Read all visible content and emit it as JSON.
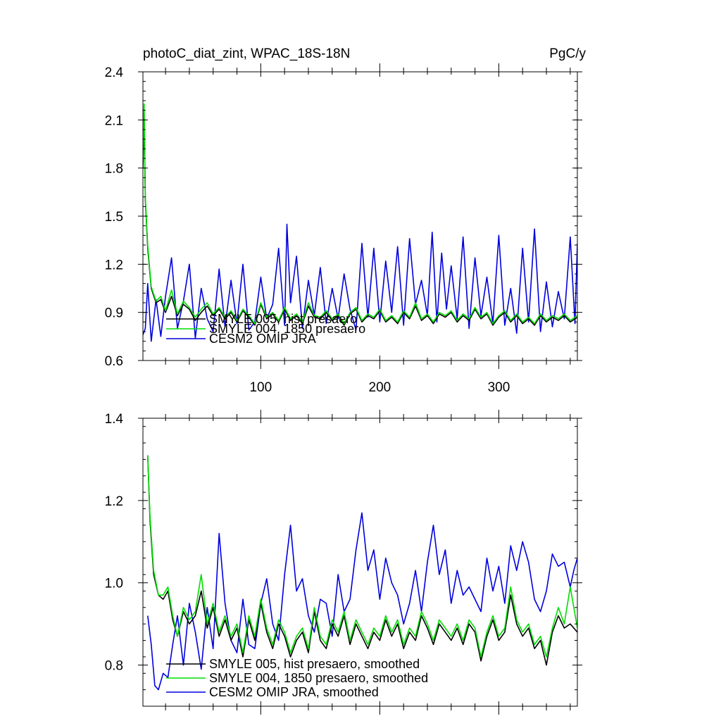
{
  "chart_data": [
    {
      "type": "line",
      "title": "photoC_diat_zint, WPAC_18S-18N",
      "units": "PgC/y",
      "xlabel": "",
      "ylabel": "",
      "xlim": [
        1,
        366
      ],
      "ylim": [
        0.6,
        2.4
      ],
      "xticks": [
        100,
        200,
        300
      ],
      "xtick_labels": [
        "100",
        "200",
        "300"
      ],
      "yticks": [
        0.6,
        0.9,
        1.2,
        1.5,
        1.8,
        2.1,
        2.4
      ],
      "ytick_labels": [
        "0.6",
        "0.9",
        "1.2",
        "1.5",
        "1.8",
        "2.1",
        "2.4"
      ],
      "grid": false,
      "legend_position": "bottom-left",
      "series": [
        {
          "name": "SMYLE 005, hist presaero",
          "color": "#000000",
          "x": [
            1,
            2,
            3,
            5,
            8,
            12,
            16,
            20,
            25,
            30,
            35,
            40,
            45,
            50,
            55,
            60,
            65,
            70,
            75,
            80,
            85,
            90,
            95,
            100,
            105,
            110,
            115,
            120,
            125,
            130,
            135,
            140,
            145,
            150,
            155,
            160,
            165,
            170,
            175,
            180,
            185,
            190,
            195,
            200,
            205,
            210,
            215,
            220,
            225,
            230,
            235,
            240,
            245,
            250,
            255,
            260,
            265,
            270,
            275,
            280,
            285,
            290,
            295,
            300,
            305,
            310,
            315,
            320,
            325,
            330,
            335,
            340,
            345,
            350,
            355,
            360,
            366
          ],
          "values": [
            1.8,
            2.15,
            1.6,
            1.3,
            1.05,
            0.96,
            0.98,
            0.9,
            1.0,
            0.88,
            0.95,
            0.92,
            0.85,
            0.9,
            0.94,
            0.88,
            0.92,
            0.86,
            0.9,
            0.84,
            0.91,
            0.87,
            0.82,
            0.95,
            0.86,
            0.89,
            0.84,
            0.92,
            0.85,
            0.88,
            0.83,
            0.94,
            0.87,
            0.86,
            0.9,
            0.85,
            0.88,
            0.82,
            0.89,
            0.92,
            0.84,
            0.88,
            0.86,
            0.91,
            0.84,
            0.87,
            0.83,
            0.9,
            0.86,
            0.94,
            0.85,
            0.88,
            0.83,
            0.89,
            0.87,
            0.9,
            0.84,
            0.88,
            0.85,
            0.92,
            0.86,
            0.89,
            0.82,
            0.87,
            0.9,
            0.84,
            0.88,
            0.83,
            0.86,
            0.82,
            0.88,
            0.84,
            0.87,
            0.85,
            0.88,
            0.84,
            0.87
          ]
        },
        {
          "name": "SMYLE 004, 1850 presaero",
          "color": "#00dd00",
          "x": [
            1,
            2,
            3,
            5,
            8,
            12,
            16,
            20,
            25,
            30,
            35,
            40,
            45,
            50,
            55,
            60,
            65,
            70,
            75,
            80,
            85,
            90,
            95,
            100,
            105,
            110,
            115,
            120,
            125,
            130,
            135,
            140,
            145,
            150,
            155,
            160,
            165,
            170,
            175,
            180,
            185,
            190,
            195,
            200,
            205,
            210,
            215,
            220,
            225,
            230,
            235,
            240,
            245,
            250,
            255,
            260,
            265,
            270,
            275,
            280,
            285,
            290,
            295,
            300,
            305,
            310,
            315,
            320,
            325,
            330,
            335,
            340,
            345,
            350,
            355,
            360,
            366
          ],
          "values": [
            1.85,
            2.2,
            1.62,
            1.32,
            1.06,
            0.97,
            1.0,
            0.91,
            1.04,
            0.89,
            0.97,
            0.93,
            0.87,
            0.92,
            0.96,
            0.89,
            0.93,
            0.87,
            0.91,
            0.85,
            0.92,
            0.88,
            0.83,
            0.96,
            0.87,
            0.9,
            0.85,
            0.93,
            0.86,
            0.89,
            0.84,
            0.96,
            0.88,
            0.87,
            0.91,
            0.86,
            0.89,
            0.83,
            0.9,
            0.93,
            0.85,
            0.89,
            0.87,
            0.92,
            0.85,
            0.88,
            0.84,
            0.91,
            0.87,
            0.96,
            0.86,
            0.89,
            0.84,
            0.9,
            0.88,
            0.91,
            0.85,
            0.89,
            0.86,
            0.93,
            0.87,
            0.9,
            0.83,
            0.88,
            0.91,
            0.85,
            0.89,
            0.84,
            0.87,
            0.83,
            0.89,
            0.85,
            0.88,
            0.86,
            0.89,
            0.85,
            0.88
          ]
        },
        {
          "name": "CESM2 OMIP JRA",
          "color": "#0000dd",
          "x": [
            1,
            3,
            5,
            8,
            12,
            16,
            20,
            25,
            30,
            35,
            40,
            45,
            50,
            55,
            60,
            65,
            70,
            75,
            80,
            85,
            90,
            95,
            100,
            105,
            110,
            115,
            120,
            122,
            125,
            130,
            135,
            140,
            145,
            150,
            155,
            160,
            165,
            170,
            175,
            180,
            185,
            190,
            195,
            200,
            205,
            210,
            215,
            220,
            225,
            230,
            235,
            240,
            244,
            248,
            252,
            256,
            260,
            265,
            270,
            275,
            280,
            285,
            290,
            295,
            300,
            305,
            310,
            315,
            320,
            325,
            330,
            335,
            340,
            345,
            350,
            355,
            360,
            364,
            366
          ],
          "values": [
            0.76,
            0.8,
            1.08,
            0.72,
            0.98,
            0.75,
            1.0,
            1.24,
            0.8,
            0.97,
            1.2,
            0.74,
            1.05,
            0.86,
            0.78,
            1.17,
            0.81,
            1.1,
            0.83,
            1.2,
            0.79,
            0.84,
            1.12,
            0.86,
            0.95,
            1.3,
            0.82,
            1.45,
            0.96,
            1.25,
            0.8,
            1.1,
            0.88,
            1.18,
            0.83,
            1.05,
            0.86,
            1.14,
            0.92,
            0.79,
            1.33,
            0.87,
            1.3,
            0.84,
            1.22,
            0.9,
            1.31,
            0.82,
            1.36,
            0.95,
            1.1,
            0.88,
            1.4,
            0.84,
            1.27,
            0.92,
            1.19,
            0.86,
            1.37,
            0.8,
            1.24,
            0.88,
            1.12,
            0.83,
            1.38,
            0.82,
            1.05,
            0.77,
            1.3,
            0.84,
            1.42,
            0.78,
            1.09,
            0.81,
            1.03,
            0.86,
            1.37,
            0.83,
            1.33
          ]
        }
      ]
    },
    {
      "type": "line",
      "title": "",
      "xlabel": "",
      "ylabel": "",
      "xlim": [
        1,
        366
      ],
      "ylim": [
        0.7,
        1.4
      ],
      "xticks": [
        100,
        200,
        300
      ],
      "xtick_labels": [],
      "yticks": [
        0.8,
        1.0,
        1.2,
        1.4
      ],
      "ytick_labels": [
        "0.8",
        "1.0",
        "1.2",
        "1.4"
      ],
      "grid": false,
      "legend_position": "bottom-left",
      "series": [
        {
          "name": "SMYLE 005, hist presaero, smoothed",
          "color": "#000000",
          "x": [
            5,
            7,
            10,
            14,
            18,
            22,
            26,
            30,
            35,
            40,
            45,
            50,
            55,
            60,
            65,
            70,
            75,
            80,
            85,
            90,
            95,
            100,
            105,
            110,
            115,
            120,
            125,
            130,
            135,
            140,
            145,
            150,
            155,
            160,
            165,
            170,
            175,
            180,
            185,
            190,
            195,
            200,
            205,
            210,
            215,
            220,
            225,
            230,
            235,
            240,
            245,
            250,
            255,
            260,
            265,
            270,
            275,
            280,
            285,
            290,
            295,
            300,
            305,
            310,
            315,
            320,
            325,
            330,
            335,
            340,
            345,
            350,
            355,
            360,
            366
          ],
          "values": [
            1.31,
            1.15,
            1.02,
            0.97,
            0.96,
            0.98,
            0.91,
            0.87,
            0.93,
            0.9,
            0.92,
            0.98,
            0.89,
            0.94,
            0.87,
            0.91,
            0.86,
            0.89,
            0.82,
            0.91,
            0.86,
            0.95,
            0.88,
            0.84,
            0.9,
            0.87,
            0.82,
            0.86,
            0.88,
            0.83,
            0.93,
            0.86,
            0.84,
            0.9,
            0.87,
            0.92,
            0.85,
            0.9,
            0.87,
            0.84,
            0.88,
            0.86,
            0.91,
            0.87,
            0.9,
            0.84,
            0.88,
            0.86,
            0.92,
            0.89,
            0.85,
            0.9,
            0.88,
            0.86,
            0.89,
            0.85,
            0.9,
            0.88,
            0.81,
            0.87,
            0.91,
            0.86,
            0.88,
            0.97,
            0.9,
            0.87,
            0.89,
            0.84,
            0.86,
            0.8,
            0.88,
            0.92,
            0.89,
            0.9,
            0.88
          ]
        },
        {
          "name": "SMYLE 004, 1850 presaero, smoothed",
          "color": "#00dd00",
          "x": [
            5,
            7,
            10,
            14,
            18,
            22,
            26,
            30,
            35,
            40,
            45,
            50,
            55,
            60,
            65,
            70,
            75,
            80,
            85,
            90,
            95,
            100,
            105,
            110,
            115,
            120,
            125,
            130,
            135,
            140,
            145,
            150,
            155,
            160,
            165,
            170,
            175,
            180,
            185,
            190,
            195,
            200,
            205,
            210,
            215,
            220,
            225,
            230,
            235,
            240,
            245,
            250,
            255,
            260,
            265,
            270,
            275,
            280,
            285,
            290,
            295,
            300,
            305,
            310,
            315,
            320,
            325,
            330,
            335,
            340,
            345,
            350,
            355,
            360,
            366
          ],
          "values": [
            1.31,
            1.16,
            1.03,
            0.97,
            0.97,
            0.99,
            0.92,
            0.87,
            0.94,
            0.91,
            0.93,
            1.02,
            0.9,
            0.95,
            0.88,
            0.92,
            0.87,
            0.9,
            0.83,
            0.92,
            0.87,
            0.96,
            0.89,
            0.85,
            0.91,
            0.88,
            0.83,
            0.87,
            0.89,
            0.84,
            0.94,
            0.87,
            0.85,
            0.91,
            0.88,
            0.93,
            0.86,
            0.91,
            0.88,
            0.85,
            0.89,
            0.87,
            0.92,
            0.88,
            0.91,
            0.85,
            0.89,
            0.87,
            0.93,
            0.9,
            0.86,
            0.91,
            0.89,
            0.87,
            0.9,
            0.86,
            0.91,
            0.89,
            0.82,
            0.88,
            0.92,
            0.87,
            0.89,
            0.99,
            0.91,
            0.88,
            0.9,
            0.85,
            0.87,
            0.82,
            0.89,
            0.94,
            0.9,
            0.99,
            0.89
          ]
        },
        {
          "name": "CESM2 OMIP JRA, smoothed",
          "color": "#0000dd",
          "x": [
            5,
            8,
            11,
            14,
            18,
            22,
            26,
            30,
            35,
            40,
            45,
            50,
            55,
            60,
            65,
            70,
            75,
            80,
            85,
            90,
            95,
            100,
            105,
            110,
            115,
            120,
            125,
            130,
            135,
            140,
            145,
            150,
            155,
            160,
            165,
            170,
            175,
            180,
            185,
            190,
            195,
            200,
            205,
            210,
            215,
            220,
            225,
            230,
            235,
            240,
            245,
            250,
            255,
            260,
            265,
            270,
            275,
            280,
            285,
            290,
            295,
            300,
            305,
            310,
            315,
            320,
            325,
            330,
            335,
            340,
            345,
            350,
            355,
            360,
            363,
            366
          ],
          "values": [
            0.92,
            0.85,
            0.75,
            0.74,
            0.78,
            0.77,
            0.85,
            0.92,
            0.8,
            0.95,
            0.88,
            0.79,
            0.94,
            0.84,
            1.12,
            0.95,
            0.86,
            0.83,
            0.96,
            0.85,
            0.84,
            0.95,
            1.01,
            0.9,
            0.86,
            1.02,
            1.14,
            0.98,
            1.01,
            0.92,
            0.88,
            0.96,
            0.95,
            0.87,
            1.02,
            0.93,
            0.96,
            1.08,
            1.17,
            1.03,
            1.08,
            0.96,
            1.06,
            1.0,
            0.97,
            0.9,
            0.95,
            1.03,
            0.93,
            1.05,
            1.14,
            1.02,
            1.08,
            0.95,
            1.03,
            0.97,
            0.99,
            0.96,
            0.93,
            1.06,
            0.98,
            1.04,
            0.95,
            1.09,
            1.03,
            1.1,
            1.05,
            0.96,
            0.93,
            0.98,
            1.07,
            1.04,
            1.05,
            0.99,
            1.03,
            1.06
          ]
        }
      ]
    }
  ]
}
